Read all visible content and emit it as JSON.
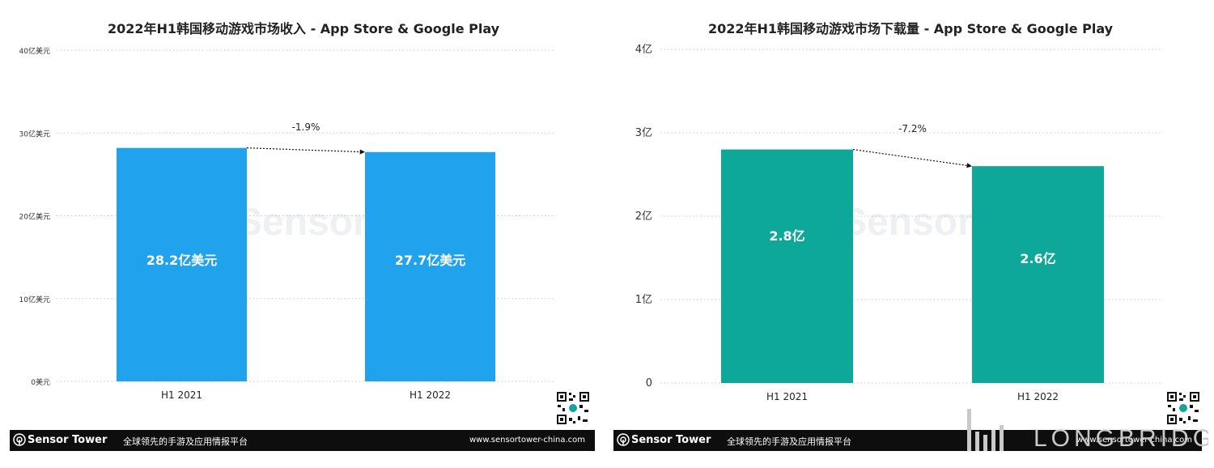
{
  "chart_data": [
    {
      "type": "bar",
      "title": "2022年H1韩国移动游戏市场收入 - App Store & Google Play",
      "categories": [
        "H1 2021",
        "H1 2022"
      ],
      "values": [
        28.2,
        27.7
      ],
      "value_labels": [
        "28.2亿美元",
        "27.7亿美元"
      ],
      "yticks": [
        "0美元",
        "10亿美元",
        "20亿美元",
        "30亿美元",
        "40亿美元"
      ],
      "ylim": [
        0,
        40
      ],
      "grid": true,
      "change_label": "-1.9%",
      "bar_color": "#20a2ec"
    },
    {
      "type": "bar",
      "title": "2022年H1韩国移动游戏市场下载量 - App Store & Google Play",
      "categories": [
        "H1 2021",
        "H1 2022"
      ],
      "values": [
        2.8,
        2.6
      ],
      "value_labels": [
        "2.8亿",
        "2.6亿"
      ],
      "yticks": [
        "0",
        "1亿",
        "2亿",
        "3亿",
        "4亿"
      ],
      "ylim": [
        0,
        4
      ],
      "grid": true,
      "change_label": "-7.2%",
      "bar_color": "#0ea89a"
    }
  ],
  "footer": {
    "brand": "Sensor Tower",
    "slogan": "全球领先的手游及应用情报平台",
    "url": "www.sensortower-china.com"
  },
  "watermark": "SensorTower",
  "corner_logo": "LONGBRIDGE"
}
